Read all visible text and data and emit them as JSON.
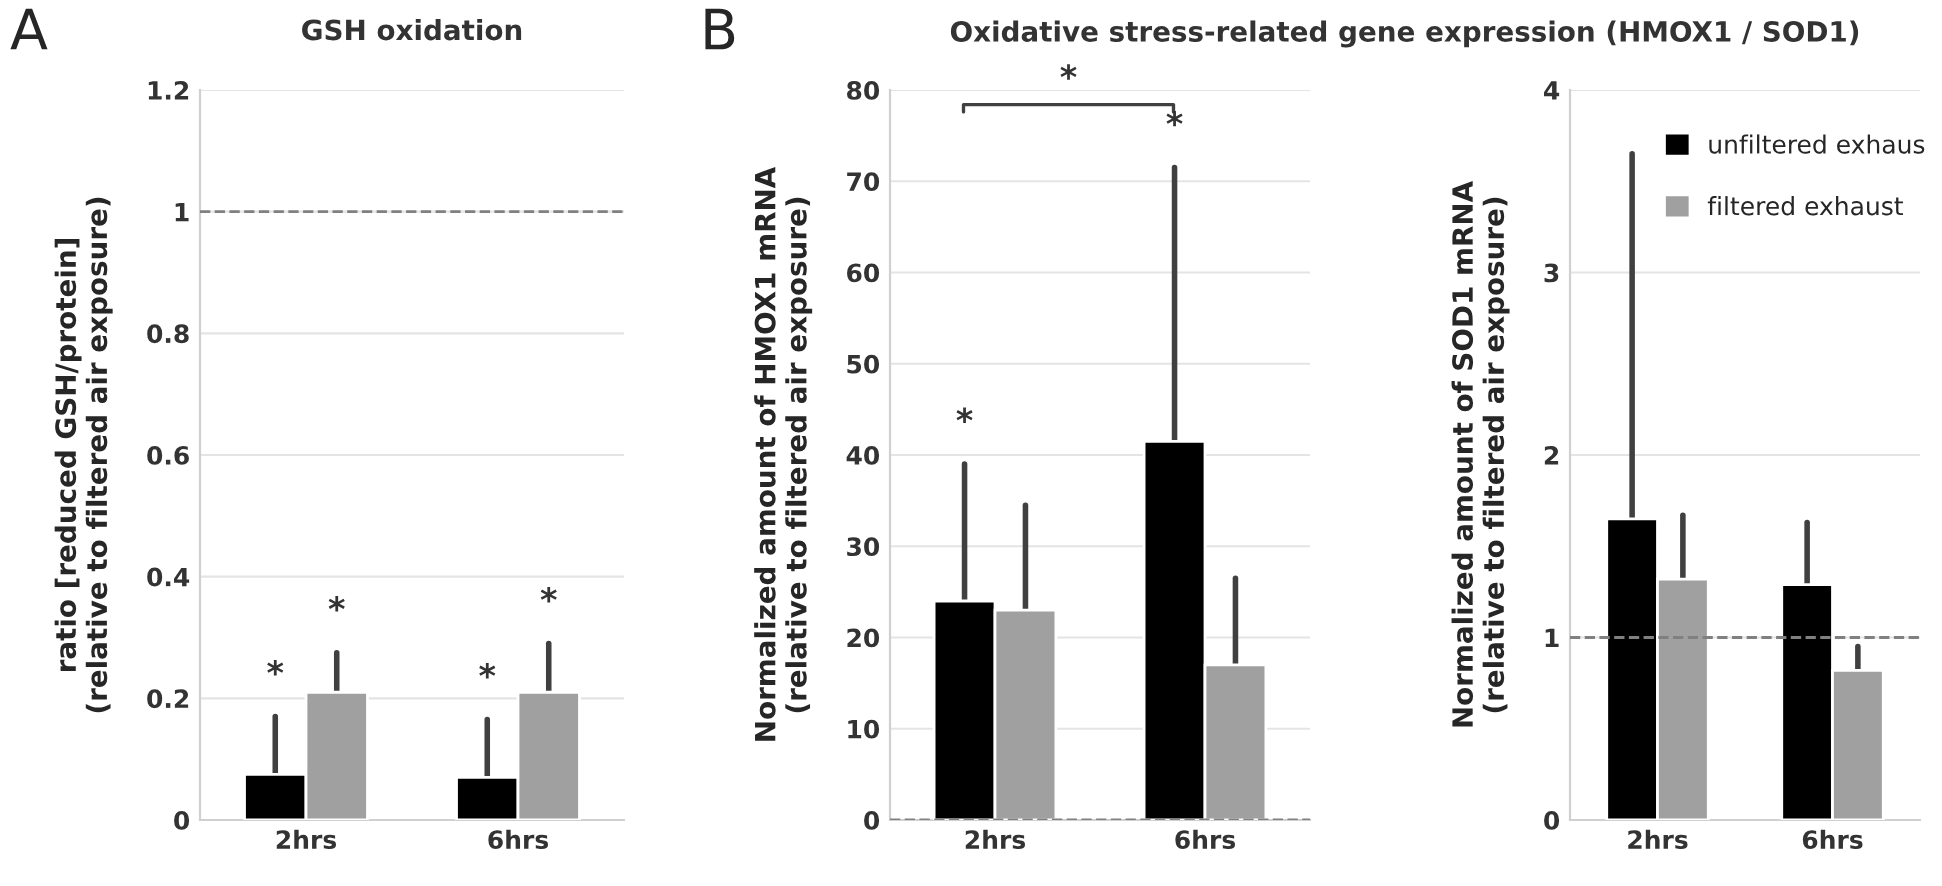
{
  "chart_data": [
    {
      "type": "bar",
      "title": "GSH oxidation",
      "ylabel": "ratio [reduced GSH/protein]\n(relative to filtered air exposure)",
      "categories": [
        "2hrs",
        "6hrs"
      ],
      "series": [
        {
          "color": "#000000",
          "values": [
            0.075,
            0.07
          ],
          "errors": [
            [
              0.075,
              0.17
            ],
            [
              0.07,
              0.165
            ]
          ]
        },
        {
          "color": "#a0a0a0",
          "values": [
            0.21,
            0.21
          ],
          "errors": [
            [
              0.21,
              0.275
            ],
            [
              0.21,
              0.29
            ]
          ]
        }
      ],
      "ylim": [
        0,
        1.2
      ],
      "yticks": [
        0,
        0.2,
        0.4,
        0.6,
        0.8,
        1,
        1.2
      ],
      "grid": "y",
      "legend": false,
      "ref_lines": [
        {
          "axis": "y",
          "value": 1,
          "line_style": "dashed",
          "color": "#808080"
        }
      ],
      "annotations": [
        "A",
        "*",
        "*",
        "*",
        "*"
      ]
    },
    {
      "type": "bar",
      "title": "Oxidative stress-related gene expression (HMOX1 / SOD1)",
      "ylabel": "Normalized amount of HMOX1 mRNA\n(relative to filtered air exposure)",
      "categories": [
        "2hrs",
        "6hrs"
      ],
      "series": [
        {
          "color": "#000000",
          "values": [
            24,
            41.5
          ],
          "errors": [
            [
              24,
              39
            ],
            [
              41.5,
              71.5
            ]
          ]
        },
        {
          "color": "#a0a0a0",
          "values": [
            23,
            17
          ],
          "errors": [
            [
              23,
              34.5
            ],
            [
              17,
              26.5
            ]
          ]
        }
      ],
      "ylim": [
        0,
        80
      ],
      "yticks": [
        0,
        10,
        20,
        30,
        40,
        50,
        60,
        70,
        80
      ],
      "grid": "y",
      "legend": false,
      "ref_lines": [
        {
          "axis": "y",
          "value": 0,
          "line_style": "dashed",
          "color": "#808080"
        }
      ],
      "annotations": [
        "B",
        "*",
        "*",
        "*"
      ]
    },
    {
      "type": "bar",
      "ylabel": "Normalized amount of SOD1 mRNA\n(relative to filtered air exposure)",
      "categories": [
        "2hrs",
        "6hrs"
      ],
      "series": [
        {
          "name": "unfiltered exhaus",
          "color": "#000000",
          "values": [
            1.65,
            1.29
          ],
          "errors": [
            [
              1.65,
              3.65
            ],
            [
              1.29,
              1.63
            ]
          ]
        },
        {
          "name": "filtered exhaust",
          "color": "#a0a0a0",
          "values": [
            1.32,
            0.82
          ],
          "errors": [
            [
              1.32,
              1.67
            ],
            [
              0.82,
              0.95
            ]
          ]
        }
      ],
      "ylim": [
        0,
        4
      ],
      "yticks": [
        0,
        1,
        2,
        3,
        4
      ],
      "grid": "y",
      "legend": "top right",
      "ref_lines": [
        {
          "axis": "y",
          "value": 1,
          "line_style": "dashed",
          "color": "#808080"
        }
      ]
    }
  ]
}
